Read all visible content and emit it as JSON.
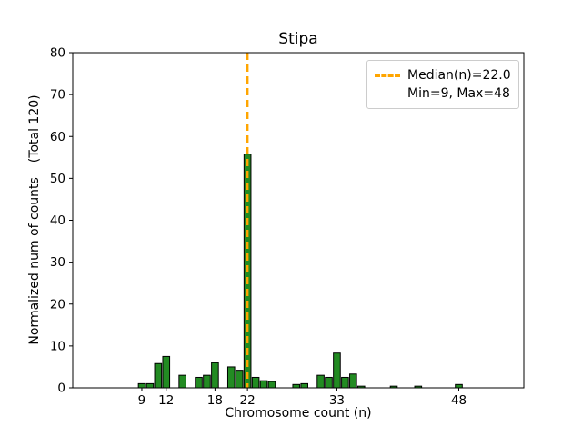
{
  "title": "Stipa",
  "xlabel": "Chromosome count (n)",
  "ylabel_main": "Normalized num of counts",
  "ylabel_sub": "(Total 120)",
  "legend": {
    "median_label": "Median(n)=22.0",
    "minmax_label": "Min=9, Max=48"
  },
  "colors": {
    "bar": "#228B22",
    "bar_edge": "#000000",
    "median_line": "#ffa500",
    "axis": "#000000",
    "legend_border": "#cccccc"
  },
  "chart_data": {
    "type": "bar",
    "title": "Stipa",
    "xlabel": "Chromosome count (n)",
    "ylabel": "Normalized num of counts (Total 120)",
    "total": 120,
    "median": 22.0,
    "min": 9,
    "max": 48,
    "xlim": [
      0.5,
      56
    ],
    "ylim": [
      0,
      80
    ],
    "xticks": [
      9,
      12,
      18,
      22,
      33,
      48
    ],
    "yticks": [
      0,
      10,
      20,
      30,
      40,
      50,
      60,
      70,
      80
    ],
    "grid": false,
    "legend_position": "upper right",
    "bar_width": 0.85,
    "points": [
      {
        "x": 9,
        "y": 1.0
      },
      {
        "x": 10,
        "y": 1.0
      },
      {
        "x": 11,
        "y": 5.8
      },
      {
        "x": 12,
        "y": 7.5
      },
      {
        "x": 14,
        "y": 3.0
      },
      {
        "x": 16,
        "y": 2.5
      },
      {
        "x": 17,
        "y": 3.0
      },
      {
        "x": 18,
        "y": 6.0
      },
      {
        "x": 20,
        "y": 5.0
      },
      {
        "x": 21,
        "y": 4.2
      },
      {
        "x": 22,
        "y": 55.8
      },
      {
        "x": 23,
        "y": 2.5
      },
      {
        "x": 24,
        "y": 1.7
      },
      {
        "x": 25,
        "y": 1.5
      },
      {
        "x": 28,
        "y": 0.8
      },
      {
        "x": 29,
        "y": 1.0
      },
      {
        "x": 31,
        "y": 3.0
      },
      {
        "x": 32,
        "y": 2.5
      },
      {
        "x": 33,
        "y": 8.3
      },
      {
        "x": 34,
        "y": 2.5
      },
      {
        "x": 35,
        "y": 3.3
      },
      {
        "x": 36,
        "y": 0.4
      },
      {
        "x": 40,
        "y": 0.4
      },
      {
        "x": 43,
        "y": 0.4
      },
      {
        "x": 48,
        "y": 0.8
      }
    ]
  }
}
